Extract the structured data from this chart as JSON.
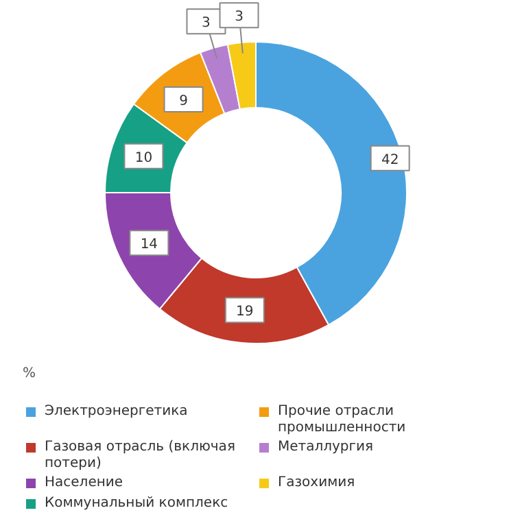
{
  "chart_data": {
    "type": "donut",
    "categories": [
      "Электроэнергетика",
      "Газовая отрасль (включая потери)",
      "Население",
      "Коммунальный комплекс",
      "Прочие отрасли промышленности",
      "Металлургия",
      "Газохимия"
    ],
    "values": [
      42,
      19,
      14,
      10,
      9,
      3,
      3
    ],
    "colors": [
      "#4aa3df",
      "#c0392b",
      "#8e44ad",
      "#16a085",
      "#f39c12",
      "#b57fd0",
      "#f7ca18"
    ],
    "data_labels": true,
    "legend": "bottom",
    "annotations": [
      "%"
    ]
  }
}
